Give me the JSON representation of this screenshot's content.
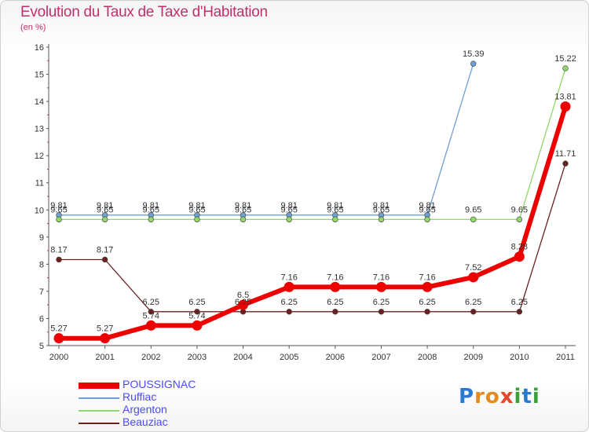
{
  "header": {
    "title": "Evolution du Taux de Taxe d'Habitation",
    "subtitle": "(en %)"
  },
  "logo": {
    "letters": [
      "P",
      "r",
      "o",
      "x",
      "i",
      "t",
      "i"
    ],
    "colors": [
      "#2a7ad1",
      "#e58a1f",
      "#e58a1f",
      "#e6462a",
      "#3aa03a",
      "#2a7ad1",
      "#3aa03a"
    ]
  },
  "chart_data": {
    "type": "line",
    "title": "Evolution du Taux de Taxe d'Habitation",
    "subtitle": "(en %)",
    "xlabel": "",
    "ylabel": "",
    "categories": [
      "2000",
      "2001",
      "2002",
      "2003",
      "2004",
      "2005",
      "2006",
      "2007",
      "2008",
      "2009",
      "2010",
      "2011"
    ],
    "ylim": [
      5,
      16
    ],
    "yticks": [
      "5",
      "6",
      "7",
      "8",
      "9",
      "10",
      "11",
      "12",
      "13",
      "14",
      "15",
      "16"
    ],
    "grid": false,
    "legend_position": "bottom-left",
    "series": [
      {
        "name": "POUSSIGNAC",
        "color": "#ee0000",
        "values": [
          5.27,
          5.27,
          5.74,
          5.74,
          6.5,
          7.16,
          7.16,
          7.16,
          7.16,
          7.52,
          8.28,
          13.81
        ],
        "labels": [
          "5.27",
          "5.27",
          "5.74",
          "5.74",
          "6.5",
          "7.16",
          "7.16",
          "7.16",
          "7.16",
          "7.52",
          "8.28",
          "13.81"
        ]
      },
      {
        "name": "Ruffiac",
        "color": "#6fa0d0",
        "values": [
          9.81,
          9.81,
          9.81,
          9.81,
          9.81,
          9.81,
          9.81,
          9.81,
          9.81,
          15.39,
          null,
          null
        ],
        "labels": [
          "9.81",
          "9.81",
          "9.81",
          "9.81",
          "9.81",
          "9.81",
          "9.81",
          "9.81",
          "9.81",
          "15.39",
          "",
          ""
        ]
      },
      {
        "name": "Argenton",
        "color": "#8fd86a",
        "values": [
          9.65,
          9.65,
          9.65,
          9.65,
          9.65,
          9.65,
          9.65,
          9.65,
          9.65,
          9.65,
          9.65,
          15.22
        ],
        "labels": [
          "9.65",
          "9.65",
          "9.65",
          "9.65",
          "9.65",
          "9.65",
          "9.65",
          "9.65",
          "9.65",
          "9.65",
          "9.65",
          "15.22"
        ]
      },
      {
        "name": "Beauziac",
        "color": "#6b2020",
        "values": [
          8.17,
          8.17,
          6.25,
          6.25,
          6.25,
          6.25,
          6.25,
          6.25,
          6.25,
          6.25,
          6.25,
          11.71
        ],
        "labels": [
          "8.17",
          "8.17",
          "6.25",
          "6.25",
          "6.25",
          "6.25",
          "6.25",
          "6.25",
          "6.25",
          "6.25",
          "6.25",
          "11.71"
        ]
      }
    ]
  }
}
